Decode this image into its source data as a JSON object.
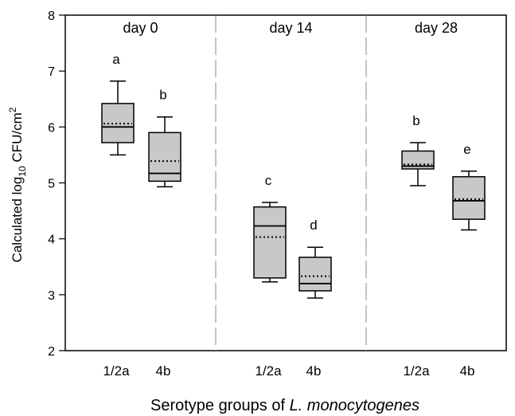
{
  "chart_data": {
    "type": "box",
    "ylabel": {
      "prefix": "Calculated log",
      "sub": "10",
      "mid": " CFU/cm",
      "sup": "2"
    },
    "xlabel": {
      "prefix": "Serotype groups of ",
      "italic": "L. monocytogenes"
    },
    "ylim": [
      2,
      8
    ],
    "yticks": [
      2,
      3,
      4,
      5,
      6,
      7,
      8
    ],
    "panels": [
      {
        "label": "day 0",
        "boxes": [
          {
            "category": "1/2a",
            "letter": "a",
            "min": 5.5,
            "q1": 5.72,
            "median": 6.0,
            "mean": 6.06,
            "q3": 6.42,
            "max": 6.82
          },
          {
            "category": "4b",
            "letter": "b",
            "min": 4.93,
            "q1": 5.03,
            "median": 5.17,
            "mean": 5.39,
            "q3": 5.9,
            "max": 6.18
          }
        ]
      },
      {
        "label": "day 14",
        "boxes": [
          {
            "category": "1/2a",
            "letter": "c",
            "min": 3.23,
            "q1": 3.3,
            "median": 4.23,
            "mean": 4.03,
            "q3": 4.57,
            "max": 4.65
          },
          {
            "category": "4b",
            "letter": "d",
            "min": 2.94,
            "q1": 3.07,
            "median": 3.2,
            "mean": 3.33,
            "q3": 3.67,
            "max": 3.85
          }
        ]
      },
      {
        "label": "day 28",
        "boxes": [
          {
            "category": "1/2a",
            "letter": "b",
            "min": 4.95,
            "q1": 5.25,
            "median": 5.3,
            "mean": 5.33,
            "q3": 5.57,
            "max": 5.72
          },
          {
            "category": "4b",
            "letter": "e",
            "min": 4.16,
            "q1": 4.35,
            "median": 4.68,
            "mean": 4.71,
            "q3": 5.11,
            "max": 5.21
          }
        ]
      }
    ],
    "colors": {
      "box_fill": "#c8c8c8",
      "line": "#000000",
      "divider": "#888888"
    }
  }
}
